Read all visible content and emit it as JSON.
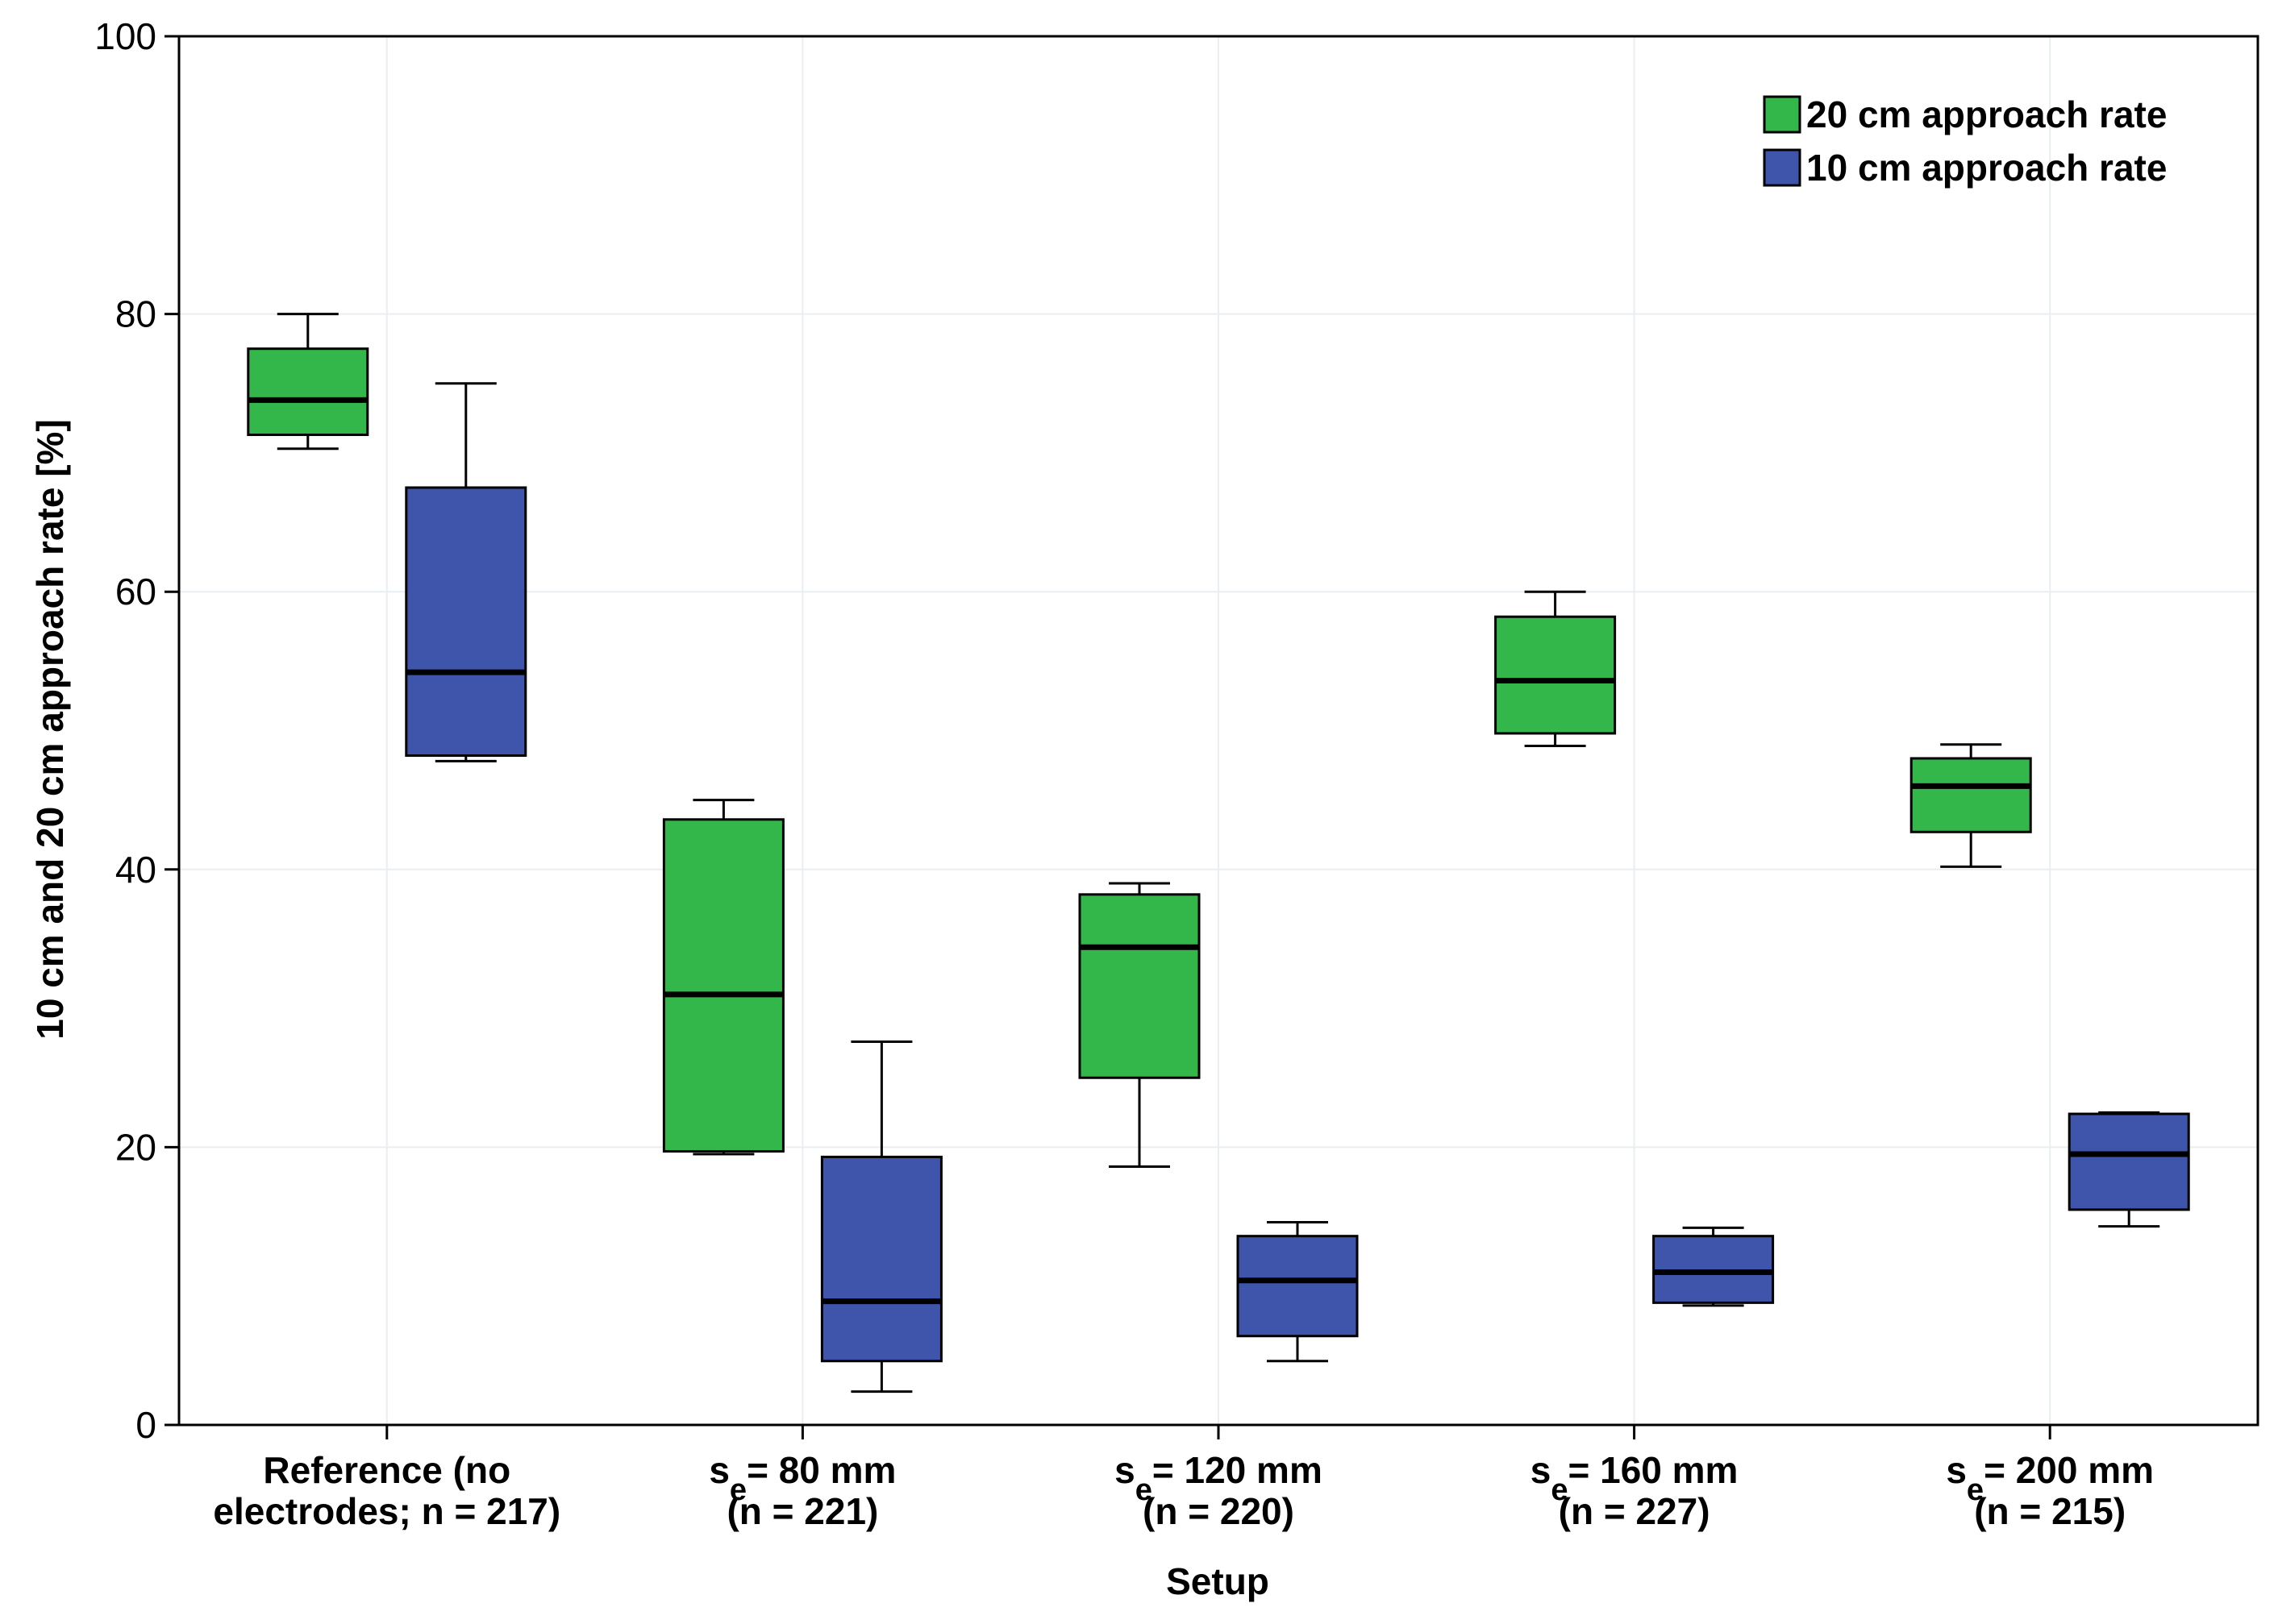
{
  "chart_data": {
    "type": "boxplot",
    "title": "",
    "xlabel": "Setup",
    "ylabel": "10 cm and 20 cm approach rate [%]",
    "ylim": [
      0,
      100
    ],
    "yticks": [
      0,
      20,
      40,
      60,
      80,
      100
    ],
    "grid": true,
    "legend_position": "top-right",
    "categories": [
      {
        "lines": [
          [
            {
              "t": "Reference (no"
            }
          ],
          [
            {
              "t": "electrodes; n = 217)"
            }
          ]
        ]
      },
      {
        "lines": [
          [
            {
              "t": "s"
            },
            {
              "t": "e",
              "sub": true
            },
            {
              "t": "= 80 mm"
            }
          ],
          [
            {
              "t": "(n = 221)"
            }
          ]
        ]
      },
      {
        "lines": [
          [
            {
              "t": "s"
            },
            {
              "t": "e",
              "sub": true
            },
            {
              "t": "= 120 mm"
            }
          ],
          [
            {
              "t": "(n = 220)"
            }
          ]
        ]
      },
      {
        "lines": [
          [
            {
              "t": "s"
            },
            {
              "t": "e",
              "sub": true
            },
            {
              "t": "= 160 mm"
            }
          ],
          [
            {
              "t": "(n = 227)"
            }
          ]
        ]
      },
      {
        "lines": [
          [
            {
              "t": "s"
            },
            {
              "t": "e",
              "sub": true
            },
            {
              "t": "= 200 mm"
            }
          ],
          [
            {
              "t": "(n = 215)"
            }
          ]
        ]
      }
    ],
    "series": [
      {
        "name": "20 cm approach rate",
        "color": "#33b64a",
        "boxes": [
          {
            "min": 70.3,
            "q1": 71.3,
            "median": 73.8,
            "q3": 77.5,
            "max": 80.0
          },
          {
            "min": 19.5,
            "q1": 19.7,
            "median": 31.0,
            "q3": 43.6,
            "max": 45.0
          },
          {
            "min": 18.6,
            "q1": 25.0,
            "median": 34.4,
            "q3": 38.2,
            "max": 39.0
          },
          {
            "min": 48.9,
            "q1": 49.8,
            "median": 53.6,
            "q3": 58.2,
            "max": 60.0
          },
          {
            "min": 40.2,
            "q1": 42.7,
            "median": 46.0,
            "q3": 48.0,
            "max": 49.0
          }
        ]
      },
      {
        "name": "10 cm approach rate",
        "color": "#3f55ab",
        "boxes": [
          {
            "min": 47.8,
            "q1": 48.2,
            "median": 54.2,
            "q3": 67.5,
            "max": 75.0
          },
          {
            "min": 2.4,
            "q1": 4.6,
            "median": 8.9,
            "q3": 19.3,
            "max": 27.6
          },
          {
            "min": 4.6,
            "q1": 6.4,
            "median": 10.4,
            "q3": 13.6,
            "max": 14.6
          },
          {
            "min": 8.6,
            "q1": 8.8,
            "median": 11.0,
            "q3": 13.6,
            "max": 14.2
          },
          {
            "min": 14.3,
            "q1": 15.5,
            "median": 19.5,
            "q3": 22.4,
            "max": 22.5
          }
        ]
      }
    ]
  }
}
